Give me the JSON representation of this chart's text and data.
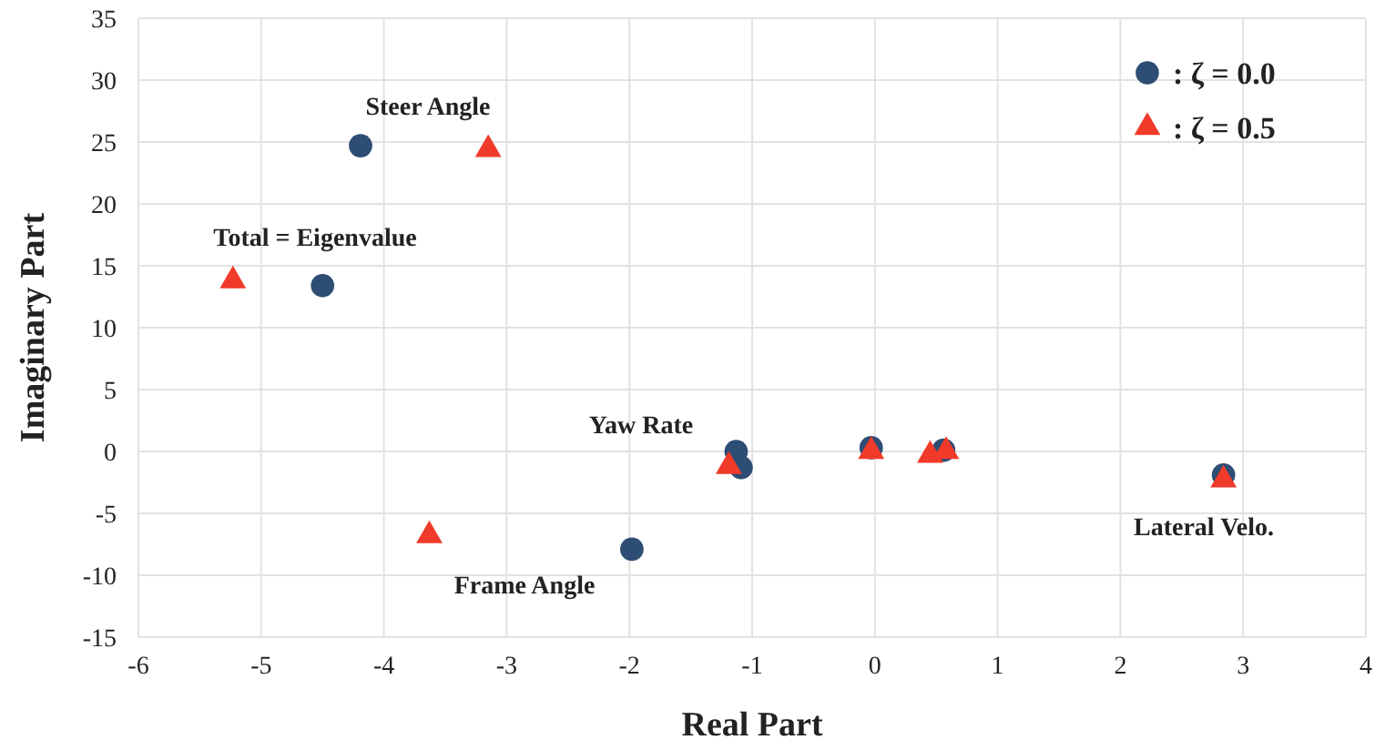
{
  "chart_data": {
    "type": "scatter",
    "xlabel": "Real Part",
    "ylabel": "Imaginary Part",
    "xlim": [
      -6,
      4
    ],
    "xticks": [
      -6,
      -5,
      -4,
      -3,
      -2,
      -1,
      0,
      1,
      2,
      3,
      4
    ],
    "ylim": [
      -15,
      35
    ],
    "yticks": [
      -15,
      -10,
      -5,
      0,
      5,
      10,
      15,
      20,
      25,
      30,
      35
    ],
    "grid": true,
    "legend": "top right",
    "series": [
      {
        "name": ": ζ = 0.0",
        "color": "#2e4d74",
        "marker": "circle",
        "x": [
          -4.19,
          -4.5,
          -1.98,
          -1.13,
          -1.09,
          -0.03,
          0.56,
          2.84
        ],
        "values": [
          24.7,
          13.4,
          -7.9,
          0,
          -1.3,
          0.3,
          0.1,
          -1.9
        ]
      },
      {
        "name": ": ζ = 0.5",
        "color": "#f03a2a",
        "marker": "triangle",
        "x": [
          -3.15,
          -5.23,
          -3.63,
          -1.19,
          -0.03,
          0.45,
          0.58,
          2.84
        ],
        "values": [
          24.4,
          13.8,
          -6.8,
          -1.2,
          0,
          -0.3,
          0,
          -2.3
        ]
      }
    ],
    "annotations": [
      "Steer Angle",
      "Total = Eigenvalue",
      "Yaw Rate",
      "Frame Angle",
      "Lateral Velo."
    ]
  }
}
